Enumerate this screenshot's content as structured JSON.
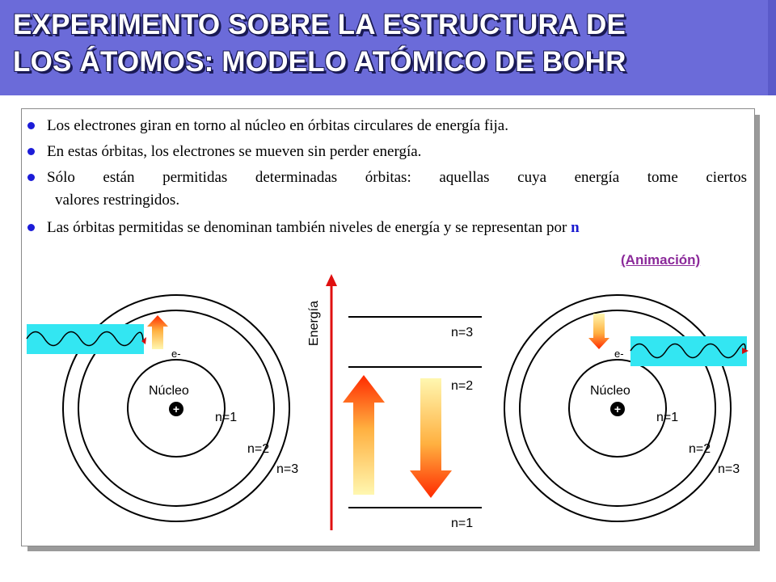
{
  "title": {
    "line1": "EXPERIMENTO SOBRE LA ESTRUCTURA DE",
    "line2": "LOS ÁTOMOS: MODELO ATÓMICO DE BOHR"
  },
  "bullets": [
    "Los electrones giran en torno al núcleo en órbitas circulares de energía fija.",
    "En estas órbitas, los electrones se mueven sin perder energía.",
    "Sólo están permitidas determinadas órbitas: aquellas cuya energía tome ciertos",
    "valores restringidos.",
    "Las órbitas permitidas se denominan también niveles de energía y se representan por",
    "n"
  ],
  "animation_link": "(Animación)",
  "diagram": {
    "energy_axis_label": "Energía",
    "levels": [
      "n=3",
      "n=2",
      "n=1"
    ],
    "atom_left": {
      "nucleus_label": "Núcleo",
      "nucleus_charge": "+",
      "electron_label": "e-",
      "orbits": [
        "n=1",
        "n=2",
        "n=3"
      ]
    },
    "atom_right": {
      "nucleus_label": "Núcleo",
      "nucleus_charge": "+",
      "electron_label": "e-",
      "orbits": [
        "n=1",
        "n=2",
        "n=3"
      ]
    },
    "colors": {
      "wave_band": "#33e6f2",
      "arrow_hot": "#ff2a00",
      "arrow_cool": "#fff2a0",
      "energy_axis": "#e01010"
    }
  }
}
